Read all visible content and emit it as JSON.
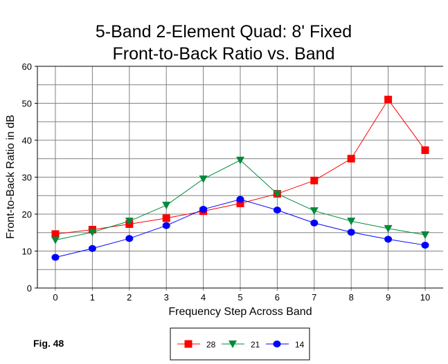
{
  "chart_data": {
    "type": "line",
    "title": [
      "5-Band 2-Element Quad: 8' Fixed",
      "Front-to-Back Ratio vs. Band"
    ],
    "xlabel": "Frequency Step Across Band",
    "ylabel": "Front-to-Back Ratio in dB",
    "x": [
      0,
      1,
      2,
      3,
      4,
      5,
      6,
      7,
      8,
      9,
      10
    ],
    "xlim": [
      0,
      10
    ],
    "ylim": [
      0,
      60
    ],
    "yticks": [
      0,
      10,
      20,
      30,
      40,
      50,
      60
    ],
    "grid": true,
    "legend_placement": "bottom-center",
    "annotation": "Fig. 48",
    "series": [
      {
        "name": "28",
        "color": "#ff0000",
        "marker": "square",
        "values": [
          14.6,
          15.8,
          17.3,
          18.9,
          20.8,
          22.9,
          25.5,
          29.1,
          35.0,
          51.0,
          37.3
        ]
      },
      {
        "name": "21",
        "color": "#008a3a",
        "marker": "triangle-down",
        "values": [
          13.0,
          15.1,
          18.1,
          22.4,
          29.5,
          34.6,
          25.5,
          20.9,
          18.1,
          16.1,
          14.4
        ]
      },
      {
        "name": "14",
        "color": "#0000ff",
        "marker": "circle",
        "values": [
          8.3,
          10.7,
          13.4,
          16.9,
          21.3,
          24.0,
          21.1,
          17.6,
          15.1,
          13.2,
          11.6
        ]
      }
    ]
  }
}
